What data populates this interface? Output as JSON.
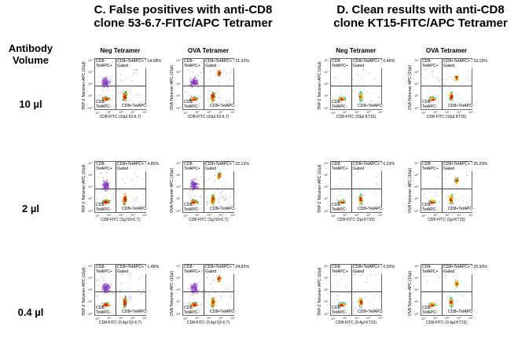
{
  "header": {
    "row_header": "Antibody\nVolume",
    "section_c": "C. False positives with anti-CD8\nclone 53-6.7-FITC/APC Tetramer",
    "section_d": "D. Clean results with anti-CD8\nclone KT15-FITC/APC Tetramer",
    "neg_tetramer": "Neg Tetramer",
    "ova_tetramer": "OVA Tetramer"
  },
  "rows": [
    "10 µl",
    "2 µl",
    "0.4 µl"
  ],
  "quadrant_labels": {
    "ul": "CD8-\nTetAPC+",
    "ll": "CD8-\nTetAPC-",
    "lr": "CD8+TetAPC-",
    "ur_prefix": "CD8+TetAPC+ :"
  },
  "ticks": [
    "10⁰",
    "10¹",
    "10²",
    "10³",
    "10⁴"
  ],
  "chart_data": [
    {
      "type": "scatter",
      "section": "C",
      "column": "Neg Tetramer",
      "row": "10 µl",
      "ur_value": "14.08%",
      "gated": "Gated",
      "ylabel": "TRP-2 Tetramer-APC (10µl)",
      "xlabel": "CD8-FITC (10µl 53-6.7)"
    },
    {
      "type": "scatter",
      "section": "C",
      "column": "OVA Tetramer",
      "row": "10 µl",
      "ur_value": "21.22%",
      "gated": "Gated",
      "ylabel": "OVA Tetramer-APC (10µl)",
      "xlabel": "CD8-FITC (10µl 53-6.7)"
    },
    {
      "type": "scatter",
      "section": "D",
      "column": "Neg Tetramer",
      "row": "10 µl",
      "ur_value": "0.46%",
      "gated": "Gated",
      "ylabel": "TRP-2 Tetramer-APC (10µl)",
      "xlabel": "CD8-FITC (10µl KT15)"
    },
    {
      "type": "scatter",
      "section": "D",
      "column": "OVA Tetramer",
      "row": "10 µl",
      "ur_value": "19.15%",
      "gated": "Gated",
      "ylabel": "OVA Tetramer-APC (10µl)",
      "xlabel": "CD8-FITC (10µl KT15)"
    },
    {
      "type": "scatter",
      "section": "C",
      "column": "Neg Tetramer",
      "row": "2 µl",
      "ur_value": "4.85%",
      "gated": "Gated",
      "ylabel": "TRP-2 Tetramer-APC (10µl)",
      "xlabel": "CD8-FITC (2µl 53-6.7)"
    },
    {
      "type": "scatter",
      "section": "C",
      "column": "OVA Tetramer",
      "row": "2 µl",
      "ur_value": "22.12%",
      "gated": "Gated",
      "ylabel": "OVA Tetramer-APC (10µl)",
      "xlabel": "CD8-FITC (2µl 53-6.7)"
    },
    {
      "type": "scatter",
      "section": "D",
      "column": "Neg Tetramer",
      "row": "2 µl",
      "ur_value": "0.23%",
      "gated": "Gated",
      "ylabel": "TRP-2 Tetramer-APC (10µl)",
      "xlabel": "CD8-FITC (2µl KT15)"
    },
    {
      "type": "scatter",
      "section": "D",
      "column": "OVA Tetramer",
      "row": "2 µl",
      "ur_value": "25.20%",
      "gated": "Gated",
      "ylabel": "OVA Tetramer-APC (10µl)",
      "xlabel": "CD8-FITC (2µl KT15)"
    },
    {
      "type": "scatter",
      "section": "C",
      "column": "Neg Tetramer",
      "row": "0.4 µl",
      "ur_value": "1.49%",
      "gated": "Gated",
      "ylabel": "TRP-2 Tetramer-APC (10µl)",
      "xlabel": "CD8-FITC (0.4µl 53-6.7)"
    },
    {
      "type": "scatter",
      "section": "C",
      "column": "OVA Tetramer",
      "row": "0.4 µl",
      "ur_value": "24.82%",
      "gated": "Gated",
      "ylabel": "OVA Tetramer-APC (10µl)",
      "xlabel": "CD8-FITC (0.4µl 53-6.7)"
    },
    {
      "type": "scatter",
      "section": "D",
      "column": "Neg Tetramer",
      "row": "0.4 µl",
      "ur_value": "0.20%",
      "gated": "Gated",
      "ylabel": "TRP-2 Tetramer-APC (10µl)",
      "xlabel": "CD8-FITC (0.4µl KT15)"
    },
    {
      "type": "scatter",
      "section": "D",
      "column": "OVA Tetramer",
      "row": "0.4 µl",
      "ur_value": "25.93%",
      "gated": "Gated",
      "ylabel": "OVA Tetramer-APC (10µl)",
      "xlabel": "CD8-FITC (0.4µl KT15)"
    }
  ]
}
